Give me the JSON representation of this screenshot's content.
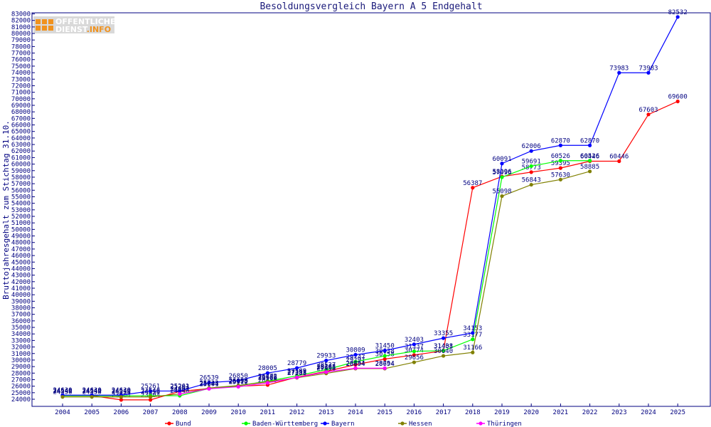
{
  "logo": {
    "line1": "OFFENTLICHER",
    "line2_a": "DIENST",
    "line2_b": ".INFO",
    "accent": "#f0921e"
  },
  "chart_data": {
    "type": "line",
    "title": "Besoldungsvergleich Bayern A 5 Endgehalt",
    "xlabel": "",
    "ylabel": "Bruttojahresgehalt zum Stichtag 31.10.",
    "ylim": [
      24000,
      83000
    ],
    "ytick_step": 1000,
    "grid": false,
    "legend_position": "bottom",
    "categories": [
      "2004",
      "2005",
      "2006",
      "2007",
      "2008",
      "2009",
      "2010",
      "2011",
      "2012",
      "2013",
      "2014",
      "2015",
      "2016",
      "2017",
      "2018",
      "2019",
      "2020",
      "2021",
      "2022",
      "2023",
      "2024",
      "2025"
    ],
    "series": [
      {
        "name": "Bund",
        "color": "#ff0000",
        "values": [
          24540,
          24540,
          23904,
          23904,
          25203,
          25644,
          25990,
          26185,
          27393,
          28263,
          29297,
          30158,
          30774,
          31408,
          56387,
          58096,
          58773,
          59395,
          60446,
          60446,
          67603,
          69600
        ]
      },
      {
        "name": "Baden-Württemberg",
        "color": "#00ff00",
        "values": [
          24540,
          24540,
          24540,
          24540,
          24540,
          25644,
          26058,
          26772,
          27589,
          28537,
          29747,
          30638,
          31337,
          31431,
          33177,
          57996,
          59691,
          60526,
          60526,
          null,
          null,
          null
        ]
      },
      {
        "name": "Bayern",
        "color": "#0000ff",
        "values": [
          24630,
          24630,
          24630,
          25261,
          25261,
          26539,
          26850,
          28005,
          28779,
          29933,
          30809,
          31450,
          32403,
          33355,
          34153,
          60091,
          62006,
          62870,
          62870,
          73983,
          73983,
          82532
        ]
      },
      {
        "name": "Hessen",
        "color": "#808000",
        "values": [
          24358,
          24358,
          24358,
          24358,
          24807,
          25723,
          26095,
          26685,
          27288,
          27958,
          28694,
          28694,
          29656,
          30640,
          31166,
          55098,
          56843,
          57630,
          58885,
          null,
          null,
          null
        ]
      },
      {
        "name": "Thüringen",
        "color": "#ff00ff",
        "values": [
          null,
          null,
          null,
          null,
          24803,
          25601,
          25912,
          26506,
          27351,
          28165,
          28754,
          28754,
          null,
          null,
          null,
          null,
          null,
          null,
          null,
          null,
          null,
          null
        ]
      }
    ]
  }
}
